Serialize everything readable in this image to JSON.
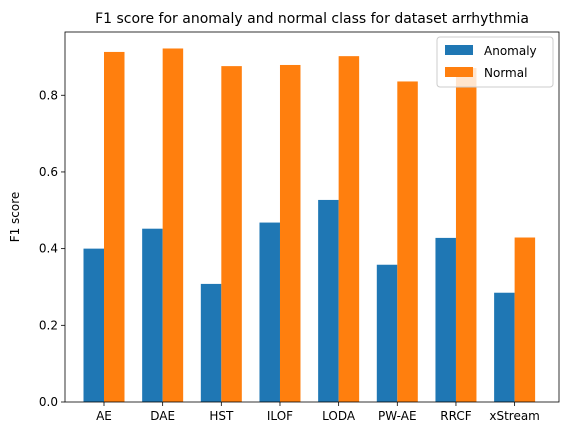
{
  "chart_data": {
    "type": "bar",
    "title": "F1 score for anomaly and normal class for dataset arrhythmia",
    "xlabel": "",
    "ylabel": "F1 score",
    "categories": [
      "AE",
      "DAE",
      "HST",
      "ILOF",
      "LODA",
      "PW-AE",
      "RRCF",
      "xStream"
    ],
    "series": [
      {
        "name": "Anomaly",
        "color": "#1f77b4",
        "values": [
          0.4,
          0.452,
          0.308,
          0.468,
          0.527,
          0.358,
          0.428,
          0.285
        ]
      },
      {
        "name": "Normal",
        "color": "#ff7f0e",
        "values": [
          0.913,
          0.922,
          0.876,
          0.879,
          0.902,
          0.836,
          0.871,
          0.429
        ]
      }
    ],
    "ylim": [
      0,
      0.965
    ],
    "yticks": [
      0.0,
      0.2,
      0.4,
      0.6,
      0.8
    ],
    "ytick_labels": [
      "0.0",
      "0.2",
      "0.4",
      "0.6",
      "0.8"
    ],
    "grid": false,
    "legend_position": "top-right"
  }
}
